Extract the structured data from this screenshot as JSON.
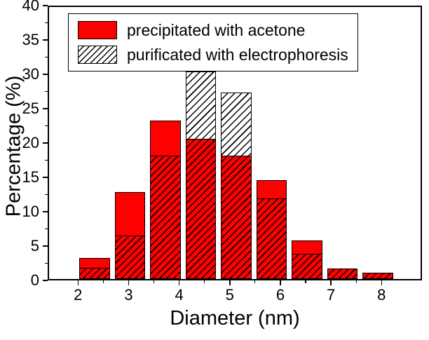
{
  "chart_data": {
    "type": "bar",
    "title": "",
    "xlabel": "Diameter (nm)",
    "ylabel": "Percentage (%)",
    "xlim": [
      1.4,
      8.8
    ],
    "ylim": [
      0,
      40
    ],
    "x_ticks": [
      2,
      3,
      4,
      5,
      6,
      7,
      8
    ],
    "x_minor_ticks": [
      2.5,
      3.5,
      4.5,
      5.5,
      6.5,
      7.5
    ],
    "y_ticks": [
      0,
      5,
      10,
      15,
      20,
      25,
      30,
      35,
      40
    ],
    "y_minor_ticks": [
      2.5,
      7.5,
      12.5,
      17.5,
      22.5,
      27.5,
      32.5,
      37.5
    ],
    "bar_centers": [
      2.3,
      3.0,
      3.7,
      4.4,
      5.1,
      5.8,
      6.5,
      7.2,
      7.9
    ],
    "bar_width_units": 0.6,
    "grid": false,
    "legend_position": "top-left",
    "series": [
      {
        "name": "precipitated with acetone",
        "style": "solid",
        "color": "#ff0000",
        "values": [
          3.1,
          12.7,
          23.1,
          20.4,
          18.0,
          14.4,
          5.6,
          1.5,
          0.9
        ]
      },
      {
        "name": "purificated with electrophoresis",
        "style": "hatched",
        "color": "#000000",
        "values": [
          1.6,
          6.3,
          18.0,
          30.2,
          27.1,
          11.7,
          3.7,
          1.5,
          0.9
        ]
      }
    ]
  }
}
